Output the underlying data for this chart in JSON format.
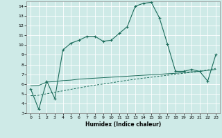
{
  "title": "",
  "xlabel": "Humidex (Indice chaleur)",
  "background_color": "#ceeae7",
  "grid_color": "#ffffff",
  "line_color": "#1a6b5a",
  "xlim": [
    -0.5,
    23.5
  ],
  "ylim": [
    3,
    14.5
  ],
  "yticks": [
    3,
    4,
    5,
    6,
    7,
    8,
    9,
    10,
    11,
    12,
    13,
    14
  ],
  "xticks": [
    0,
    1,
    2,
    3,
    4,
    5,
    6,
    7,
    8,
    9,
    10,
    11,
    12,
    13,
    14,
    15,
    16,
    17,
    18,
    19,
    20,
    21,
    22,
    23
  ],
  "curve1_x": [
    0,
    1,
    2,
    3,
    4,
    5,
    6,
    7,
    8,
    9,
    10,
    11,
    12,
    13,
    14,
    15,
    16,
    17,
    18,
    19,
    20,
    21,
    22,
    23
  ],
  "curve1_y": [
    5.5,
    3.4,
    6.3,
    4.5,
    9.5,
    10.2,
    10.5,
    10.9,
    10.9,
    10.4,
    10.5,
    11.2,
    11.9,
    14.0,
    14.3,
    14.4,
    12.8,
    10.1,
    7.3,
    7.3,
    7.5,
    7.3,
    6.3,
    9.0
  ],
  "curve2_x": [
    0,
    1,
    2,
    3,
    4,
    5,
    6,
    7,
    8,
    9,
    10,
    11,
    12,
    13,
    14,
    15,
    16,
    17,
    18,
    19,
    20,
    21,
    22,
    23
  ],
  "curve2_y": [
    5.8,
    5.85,
    6.2,
    6.25,
    6.35,
    6.4,
    6.5,
    6.55,
    6.6,
    6.65,
    6.7,
    6.75,
    6.8,
    6.85,
    6.9,
    6.95,
    7.0,
    7.05,
    7.1,
    7.2,
    7.25,
    7.3,
    7.4,
    7.5
  ],
  "curve3_x": [
    0,
    1,
    2,
    3,
    4,
    5,
    6,
    7,
    8,
    9,
    10,
    11,
    12,
    13,
    14,
    15,
    16,
    17,
    18,
    19,
    20,
    21,
    22,
    23
  ],
  "curve3_y": [
    4.8,
    4.85,
    5.0,
    5.15,
    5.3,
    5.45,
    5.6,
    5.75,
    5.88,
    6.0,
    6.12,
    6.25,
    6.38,
    6.5,
    6.6,
    6.7,
    6.8,
    6.9,
    7.0,
    7.1,
    7.2,
    7.3,
    7.45,
    7.6
  ]
}
